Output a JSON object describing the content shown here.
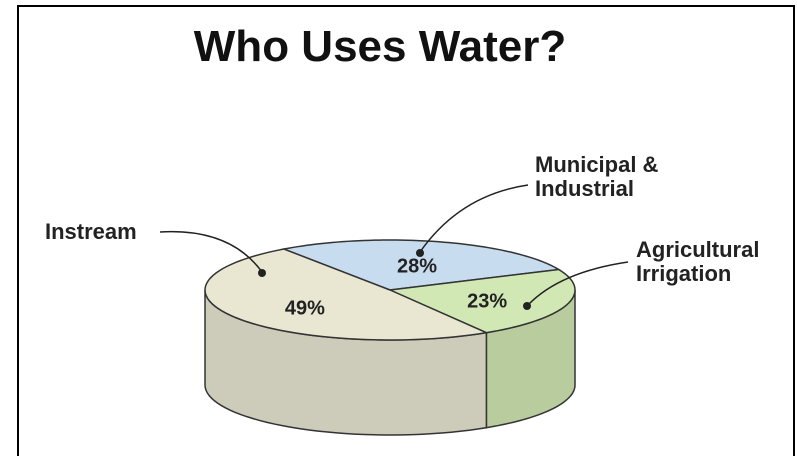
{
  "chart_data": {
    "type": "pie",
    "title": "Who Uses Water?",
    "categories": [
      "Instream",
      "Municipal & Industrial",
      "Agricultural Irrigation"
    ],
    "values": [
      49,
      28,
      23
    ],
    "value_labels": [
      "49%",
      "28%",
      "23%"
    ],
    "colors": [
      "#e9e7d2",
      "#c8dcf0",
      "#d2e8b4"
    ]
  }
}
